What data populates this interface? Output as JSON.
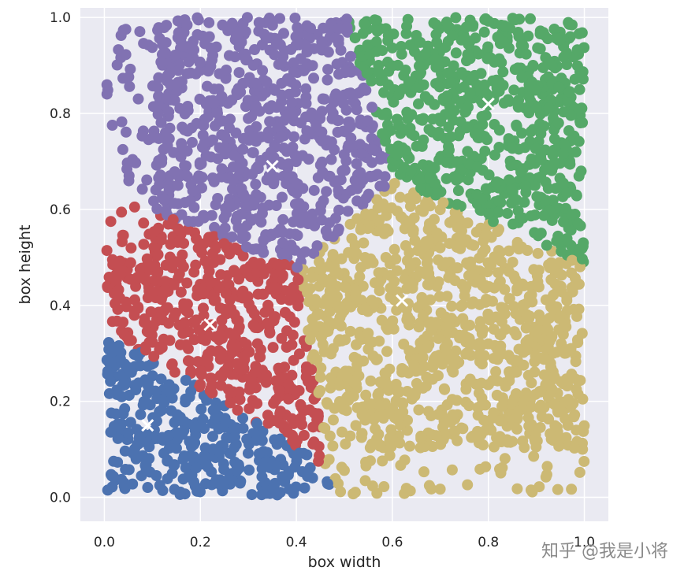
{
  "chart_data": {
    "type": "scatter",
    "title": "",
    "xlabel": "box width",
    "ylabel": "box height",
    "xlim": [
      -0.05,
      1.05
    ],
    "ylim": [
      -0.05,
      1.02
    ],
    "xticks": [
      "0.0",
      "0.2",
      "0.4",
      "0.6",
      "0.8",
      "1.0"
    ],
    "yticks": [
      "0.0",
      "0.2",
      "0.4",
      "0.6",
      "0.8",
      "1.0"
    ],
    "grid": true,
    "background": "#eaeaf2",
    "clusters": [
      {
        "color": "#4c72b0",
        "centroid": [
          0.09,
          0.15
        ]
      },
      {
        "color": "#c44e52",
        "centroid": [
          0.22,
          0.36
        ]
      },
      {
        "color": "#8172b2",
        "centroid": [
          0.35,
          0.69
        ]
      },
      {
        "color": "#ccb974",
        "centroid": [
          0.62,
          0.41
        ]
      },
      {
        "color": "#55a868",
        "centroid": [
          0.8,
          0.82
        ]
      }
    ],
    "centroid_marker": "x",
    "centroid_color": "#ffffff"
  },
  "watermark": "知乎 @我是小将"
}
